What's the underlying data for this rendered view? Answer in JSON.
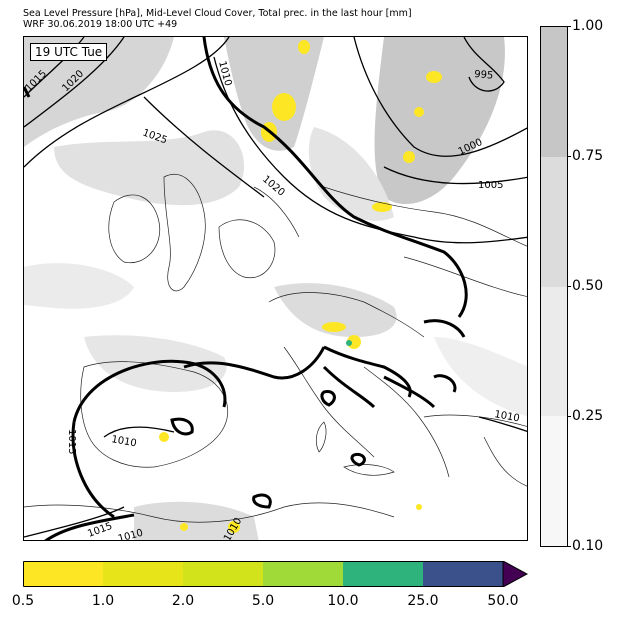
{
  "header": {
    "line1": "Sea Level Pressure [hPa], Mid-Level Cloud Cover, Total prec. in the last hour [mm]",
    "line2": "WRF 30.06.2019 18:00 UTC +49"
  },
  "map": {
    "time_stamp": "19 UTC Tue",
    "isobar_labels": [
      "1015",
      "1020",
      "1010",
      "1025",
      "1020",
      "995",
      "1000",
      "1005",
      "1015",
      "1010",
      "1010",
      "1015",
      "1010",
      "1010"
    ]
  },
  "cloud_legend": {
    "ticks": [
      "1.00",
      "0.75",
      "0.50",
      "0.25",
      "0.10"
    ],
    "colors": [
      "#c6c6c6",
      "#dcdcdc",
      "#ebebeb",
      "#f7f7f7"
    ]
  },
  "precip_legend": {
    "ticks": [
      "0.5",
      "1.0",
      "2.0",
      "5.0",
      "10.0",
      "25.0",
      "50.0"
    ],
    "colors": [
      "#fde725",
      "#e8e41a",
      "#d2e21b",
      "#a0da39",
      "#2eb37c",
      "#3b518b",
      "#440154"
    ]
  }
}
